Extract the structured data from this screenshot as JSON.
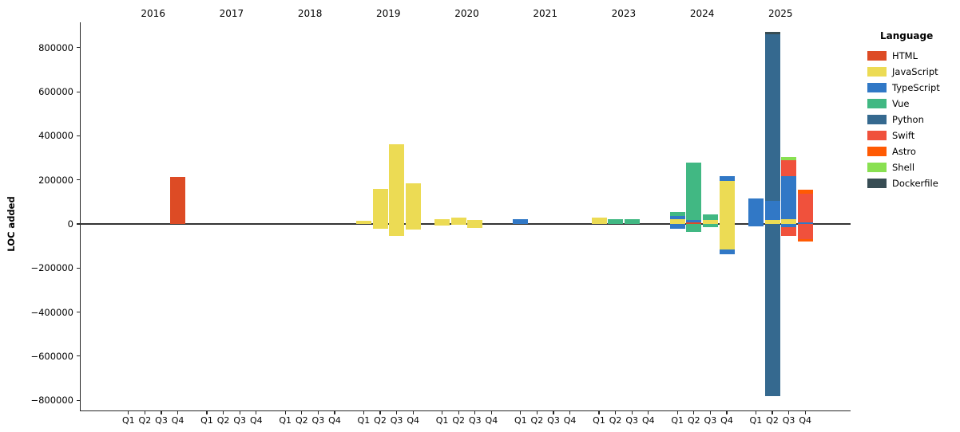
{
  "chart_data": {
    "type": "bar",
    "stacked": true,
    "ylabel": "LOC added",
    "legend_title": "Language",
    "legend_position": "right",
    "grid": false,
    "ylim": [
      -850000,
      912000
    ],
    "yticks": [
      -800000,
      -600000,
      -400000,
      -200000,
      0,
      200000,
      400000,
      600000,
      800000
    ],
    "quarters": [
      "Q1",
      "Q2",
      "Q3",
      "Q4"
    ],
    "languages": [
      {
        "name": "HTML",
        "color": "#dd4b25"
      },
      {
        "name": "JavaScript",
        "color": "#ecdb54"
      },
      {
        "name": "TypeScript",
        "color": "#3178c6"
      },
      {
        "name": "Vue",
        "color": "#41b883"
      },
      {
        "name": "Python",
        "color": "#35698f"
      },
      {
        "name": "Swift",
        "color": "#f0513c"
      },
      {
        "name": "Astro",
        "color": "#ff5a03"
      },
      {
        "name": "Shell",
        "color": "#89e051"
      },
      {
        "name": "Dockerfile",
        "color": "#384d54"
      }
    ],
    "groups": [
      {
        "year": "2016",
        "quarters": [
          [],
          [],
          [],
          [
            {
              "lang": "HTML",
              "value": 215000
            }
          ]
        ]
      },
      {
        "year": "2017",
        "quarters": [
          [],
          [],
          [],
          []
        ]
      },
      {
        "year": "2018",
        "quarters": [
          [],
          [],
          [],
          []
        ]
      },
      {
        "year": "2019",
        "quarters": [
          [
            {
              "lang": "JavaScript",
              "value": 13000
            }
          ],
          [
            {
              "lang": "JavaScript",
              "value": 160000
            },
            {
              "lang": "JavaScript",
              "value": -20000
            }
          ],
          [
            {
              "lang": "JavaScript",
              "value": 362000
            },
            {
              "lang": "JavaScript",
              "value": -56000
            }
          ],
          [
            {
              "lang": "JavaScript",
              "value": 185000
            },
            {
              "lang": "JavaScript",
              "value": -25000
            }
          ]
        ]
      },
      {
        "year": "2020",
        "quarters": [
          [
            {
              "lang": "JavaScript",
              "value": 23000
            },
            {
              "lang": "JavaScript",
              "value": -6000
            }
          ],
          [
            {
              "lang": "JavaScript",
              "value": 29000
            },
            {
              "lang": "JavaScript",
              "value": -3000
            }
          ],
          [
            {
              "lang": "JavaScript",
              "value": 19000
            },
            {
              "lang": "JavaScript",
              "value": -17000
            }
          ],
          []
        ]
      },
      {
        "year": "2021",
        "quarters": [
          [
            {
              "lang": "TypeScript",
              "value": 23000
            }
          ],
          [],
          [],
          []
        ]
      },
      {
        "year": "2023",
        "quarters": [
          [
            {
              "lang": "JavaScript",
              "value": 30000
            }
          ],
          [
            {
              "lang": "Vue",
              "value": 23000
            }
          ],
          [
            {
              "lang": "Vue",
              "value": 20000
            }
          ],
          []
        ]
      },
      {
        "year": "2024",
        "quarters": [
          [
            {
              "lang": "JavaScript",
              "value": 23000
            },
            {
              "lang": "TypeScript",
              "value": 13000
            },
            {
              "lang": "Vue",
              "value": 17000
            },
            {
              "lang": "TypeScript",
              "value": -21000
            }
          ],
          [
            {
              "lang": "HTML",
              "value": 7000
            },
            {
              "lang": "TypeScript",
              "value": 12000
            },
            {
              "lang": "Vue",
              "value": 260000
            },
            {
              "lang": "Vue",
              "value": -37000
            }
          ],
          [
            {
              "lang": "JavaScript",
              "value": 17000
            },
            {
              "lang": "Vue",
              "value": 25000
            },
            {
              "lang": "Vue",
              "value": -16000
            }
          ],
          [
            {
              "lang": "JavaScript",
              "value": 195000
            },
            {
              "lang": "TypeScript",
              "value": 22000
            },
            {
              "lang": "JavaScript",
              "value": -114000
            },
            {
              "lang": "TypeScript",
              "value": -22000
            }
          ]
        ]
      },
      {
        "year": "2025",
        "quarters": [
          [
            {
              "lang": "TypeScript",
              "value": 117000
            },
            {
              "lang": "TypeScript",
              "value": -11000
            }
          ],
          [
            {
              "lang": "JavaScript",
              "value": 19000
            },
            {
              "lang": "TypeScript",
              "value": 85000
            },
            {
              "lang": "Python",
              "value": 758000
            },
            {
              "lang": "Dockerfile",
              "value": 8000
            },
            {
              "lang": "Python",
              "value": -780000
            }
          ],
          [
            {
              "lang": "JavaScript",
              "value": 22000
            },
            {
              "lang": "TypeScript",
              "value": 196000
            },
            {
              "lang": "Swift",
              "value": 72000
            },
            {
              "lang": "Shell",
              "value": 13000
            },
            {
              "lang": "TypeScript",
              "value": -15000
            },
            {
              "lang": "Swift",
              "value": -39000
            }
          ],
          [
            {
              "lang": "TypeScript",
              "value": 7000
            },
            {
              "lang": "Swift",
              "value": 131000
            },
            {
              "lang": "Astro",
              "value": 19000
            },
            {
              "lang": "Swift",
              "value": -68000
            },
            {
              "lang": "Astro",
              "value": -10000
            }
          ]
        ]
      }
    ]
  }
}
